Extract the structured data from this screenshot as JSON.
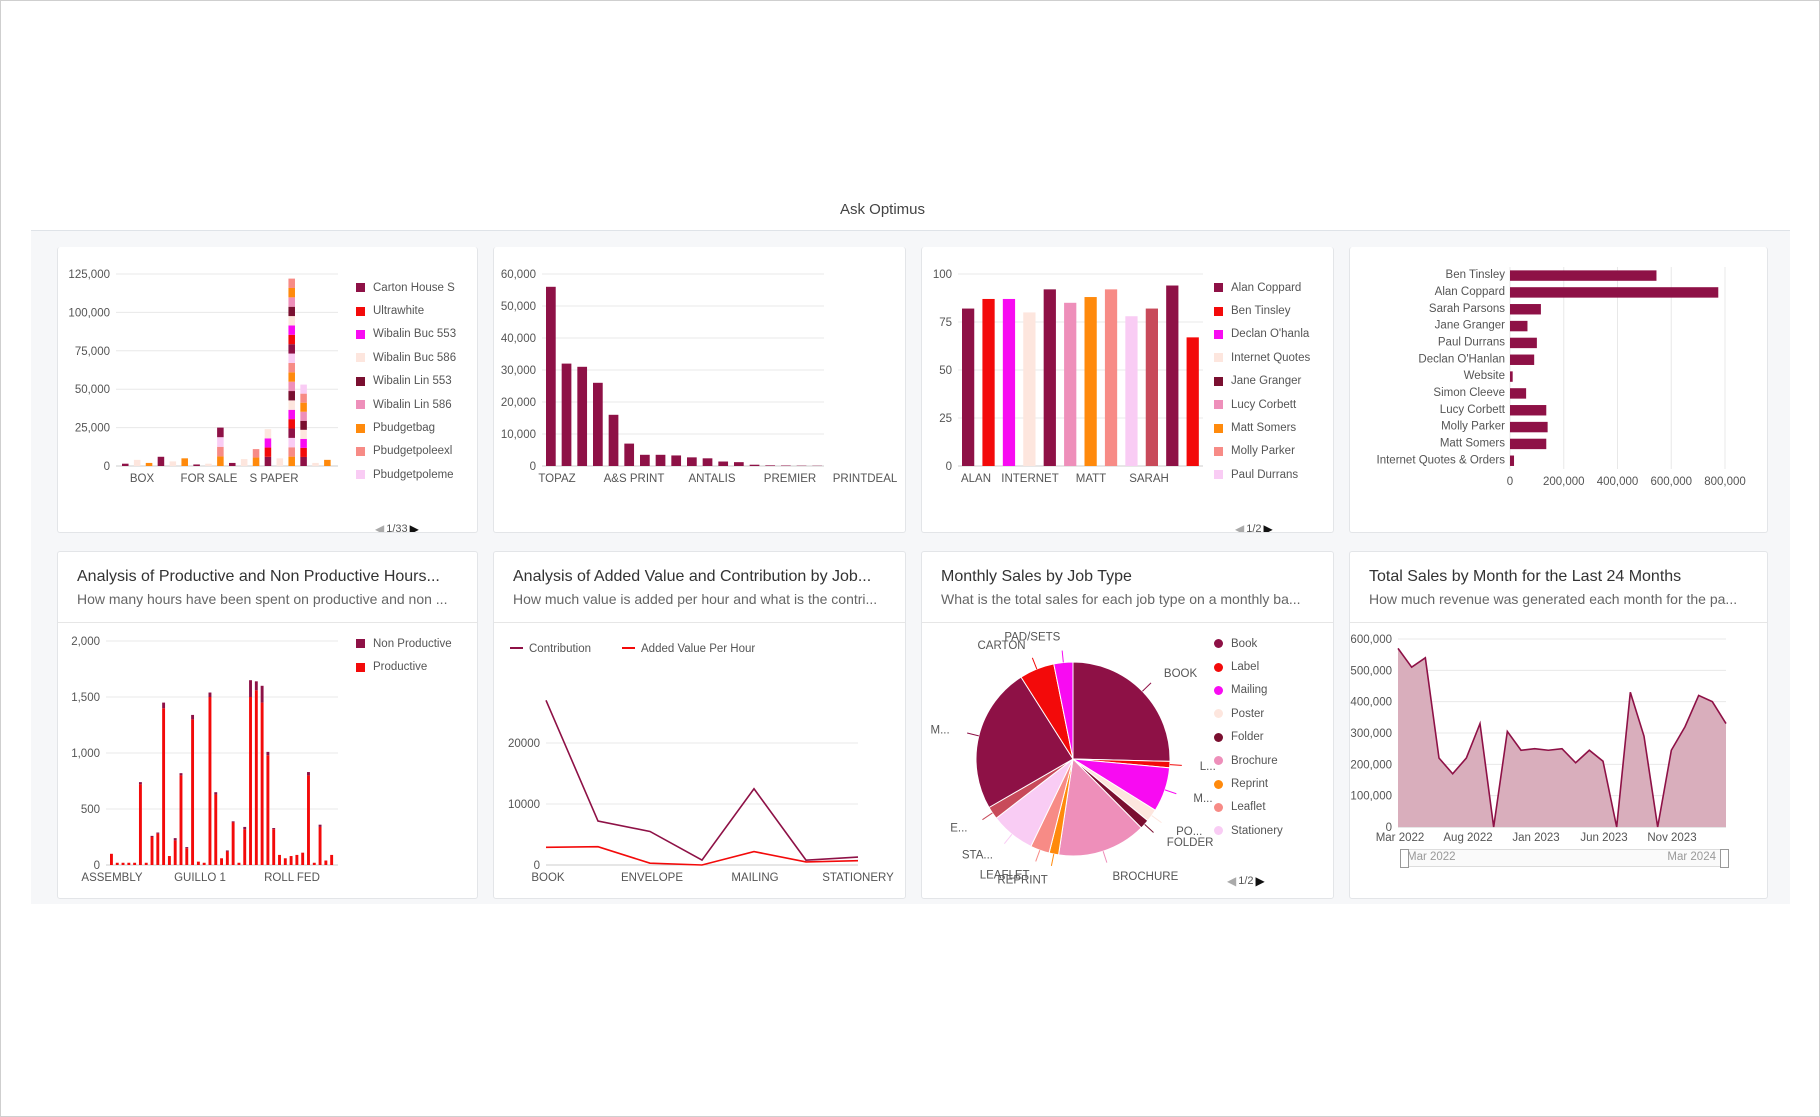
{
  "app": {
    "title": "Ask Optimus"
  },
  "pager_prev": "◀",
  "pager_next": "▶",
  "colors": {
    "maroon": "#8e1146",
    "red": "#f30a0a",
    "magenta": "#f80bf2",
    "bg": "#f6f7f9"
  },
  "cards": {
    "c1": {
      "pager": "1/33",
      "legend": [
        "Carton House S",
        "Ultrawhite",
        "Wibalin Buc 553",
        "Wibalin Buc 586",
        "Wibalin Lin 553",
        "Wibalin Lin 586",
        "Pbudgetbag",
        "Pbudgetpoleexl",
        "Pbudgetpoleme"
      ]
    },
    "c3": {
      "pager": "1/2",
      "legend": [
        "Alan Coppard",
        "Ben Tinsley",
        "Declan O'hanlan",
        "Internet Quotes",
        "Jane Granger",
        "Lucy Corbett",
        "Matt Somers",
        "Molly Parker",
        "Paul Durrans"
      ]
    },
    "c5": {
      "title": "Analysis of Productive and Non Productive Hours...",
      "subtitle": "How many hours have been spent on productive and non ...",
      "legend": [
        "Non Productive",
        "Productive"
      ]
    },
    "c6": {
      "title": "Analysis of Added Value and Contribution by Job...",
      "subtitle": "How much value is added per hour and what is the contri...",
      "legend": [
        "Contribution",
        "Added Value Per Hour"
      ]
    },
    "c7": {
      "title": "Monthly Sales by Job Type",
      "subtitle": "What is the total sales for each job type on a monthly ba...",
      "pager": "1/2",
      "legend": [
        "Book",
        "Label",
        "Mailing",
        "Poster",
        "Folder",
        "Brochure",
        "Reprint",
        "Leaflet",
        "Stationery"
      ]
    },
    "c8": {
      "title": "Total Sales by Month for the Last 24 Months",
      "subtitle": "How much revenue was generated each month for the pa...",
      "slider_left": "Mar 2022",
      "slider_right": "Mar 2024"
    }
  },
  "chart_data": [
    {
      "id": "c1",
      "type": "bar",
      "stacked": true,
      "yticks": [
        "0",
        "25,000",
        "50,000",
        "75,000",
        "100,000",
        "125,000"
      ],
      "ylim": [
        0,
        125000
      ],
      "xticks": [
        "BOX",
        "FOR SALE",
        "S PAPER"
      ],
      "values": [
        1500,
        4000,
        2000,
        6000,
        3000,
        5000,
        1000,
        1500,
        25000,
        2000,
        4500,
        11000,
        24000,
        5000,
        122000,
        53000,
        2000,
        4000
      ],
      "grid": true,
      "legend_position": "right"
    },
    {
      "id": "c2",
      "type": "bar",
      "yticks": [
        "0",
        "10,000",
        "20,000",
        "30,000",
        "40,000",
        "50,000",
        "60,000"
      ],
      "ylim": [
        0,
        60000
      ],
      "xticks": [
        "TOPAZ",
        "A&S PRINT",
        "ANTALIS",
        "PREMIER",
        "PRINTDEAL"
      ],
      "values": [
        56000,
        32000,
        31000,
        26000,
        16000,
        7000,
        3500,
        3500,
        3300,
        2700,
        2400,
        1400,
        1200,
        400,
        200,
        150,
        100,
        80
      ],
      "grid": true
    },
    {
      "id": "c3",
      "type": "bar",
      "yticks": [
        "0",
        "25",
        "50",
        "75",
        "100"
      ],
      "ylim": [
        0,
        100
      ],
      "xticks": [
        "ALAN",
        "INTERNET",
        "MATT",
        "SARAH"
      ],
      "values": [
        82,
        87,
        87,
        80,
        92,
        85,
        88,
        92,
        78,
        82,
        94,
        67
      ],
      "grid": true,
      "legend_position": "right"
    },
    {
      "id": "c4",
      "type": "bar",
      "orientation": "horizontal",
      "categories": [
        "Ben Tinsley",
        "Alan Coppard",
        "Sarah Parsons",
        "Jane Granger",
        "Paul Durrans",
        "Declan O'Hanlan",
        "Website",
        "Simon Cleeve",
        "Lucy Corbett",
        "Molly Parker",
        "Matt Somers",
        "Internet Quotes & Orders"
      ],
      "values": [
        545000,
        775000,
        115000,
        65000,
        100000,
        90000,
        10000,
        60000,
        135000,
        140000,
        135000,
        15000
      ],
      "xticks": [
        "0",
        "200,000",
        "400,000",
        "600,000",
        "800,000"
      ],
      "xlim": [
        0,
        800000
      ],
      "grid": true
    },
    {
      "id": "c5",
      "type": "bar",
      "stacked": true,
      "yticks": [
        "0",
        "500",
        "1,000",
        "1,500",
        "2,000"
      ],
      "ylim": [
        0,
        2000
      ],
      "xticks": [
        "ASSEMBLY",
        "GUILLO 1",
        "ROLL FED"
      ],
      "series": [
        {
          "name": "Productive",
          "values": [
            100,
            20,
            20,
            20,
            20,
            720,
            20,
            250,
            280,
            1400,
            80,
            220,
            800,
            150,
            1300,
            30,
            20,
            1500,
            630,
            60,
            120,
            380,
            20,
            320,
            1500,
            1560,
            1450,
            980,
            320,
            90,
            60,
            80,
            90,
            110,
            800,
            20,
            340,
            40,
            90
          ]
        },
        {
          "name": "Non Productive",
          "values": [
            0,
            0,
            0,
            0,
            0,
            20,
            0,
            10,
            10,
            50,
            0,
            20,
            20,
            10,
            40,
            0,
            0,
            40,
            20,
            0,
            10,
            10,
            0,
            20,
            150,
            80,
            150,
            30,
            10,
            0,
            0,
            0,
            0,
            0,
            30,
            0,
            20,
            0,
            0
          ]
        }
      ],
      "grid": true,
      "legend_position": "top-right"
    },
    {
      "id": "c6",
      "type": "line",
      "yticks": [
        "0",
        "10000",
        "20000"
      ],
      "ylim": [
        0,
        30000
      ],
      "xticks": [
        "BOOK",
        "ENVELOPE",
        "MAILING",
        "STATIONERY"
      ],
      "series": [
        {
          "name": "Contribution",
          "values": [
            27000,
            7200,
            5500,
            800,
            12500,
            800,
            1300
          ]
        },
        {
          "name": "Added Value Per Hour",
          "values": [
            2900,
            3000,
            300,
            0,
            2200,
            500,
            700
          ]
        }
      ],
      "grid": true,
      "legend_position": "top"
    },
    {
      "id": "c7",
      "type": "pie",
      "labels": [
        "BOOK",
        "L...",
        "M...",
        "PO...",
        "FOLDER",
        "BROCHURE",
        "REPRINT",
        "LEAFLET",
        "STA...",
        "E...",
        "M...",
        "CARTON",
        "PAD/SETS"
      ],
      "values": [
        24,
        1,
        7,
        2,
        1.5,
        14,
        1.5,
        3,
        7,
        2,
        23,
        5.5,
        3
      ],
      "legend_position": "right"
    },
    {
      "id": "c8",
      "type": "area",
      "yticks": [
        "0",
        "100,000",
        "200,000",
        "300,000",
        "400,000",
        "500,000",
        "600,000"
      ],
      "ylim": [
        0,
        600000
      ],
      "xticks": [
        "Mar 2022",
        "Aug 2022",
        "Jan 2023",
        "Jun 2023",
        "Nov 2023"
      ],
      "values": [
        570000,
        510000,
        540000,
        220000,
        170000,
        220000,
        330000,
        0,
        305000,
        245000,
        250000,
        245000,
        250000,
        205000,
        245000,
        210000,
        0,
        430000,
        290000,
        0,
        245000,
        320000,
        420000,
        400000,
        330000
      ],
      "grid": true
    }
  ]
}
